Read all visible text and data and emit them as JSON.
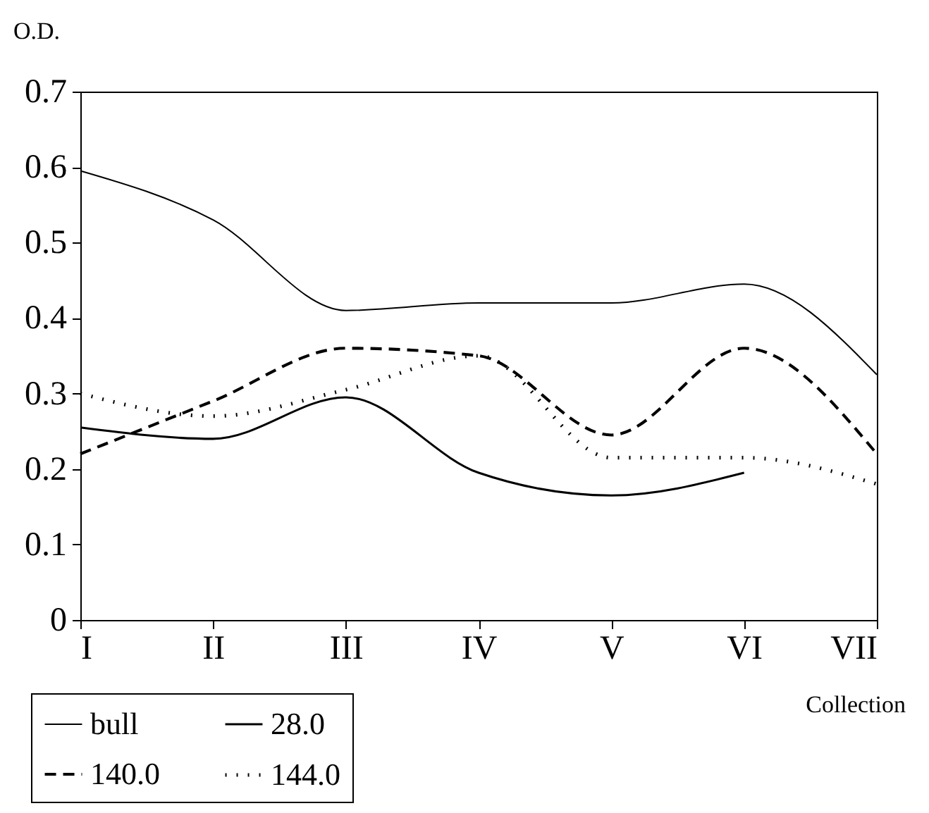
{
  "chart_data": {
    "type": "line",
    "xlabel": "Collection",
    "ylabel": "O.D.",
    "categories": [
      "I",
      "II",
      "III",
      "IV",
      "V",
      "VI",
      "VII"
    ],
    "series": [
      {
        "name": "bull",
        "color": "#000000",
        "line_style": "solid",
        "values": [
          0.595,
          0.53,
          0.41,
          0.42,
          0.42,
          0.445,
          0.325
        ]
      },
      {
        "name": "28.0",
        "color": "#000000",
        "line_style": "solid",
        "values": [
          0.255,
          0.24,
          0.295,
          0.195,
          0.165,
          0.195,
          null
        ]
      },
      {
        "name": "140.0",
        "color": "#000000",
        "line_style": "dashed",
        "values": [
          0.22,
          0.29,
          0.36,
          0.35,
          0.245,
          0.36,
          0.22
        ]
      },
      {
        "name": "144.0",
        "color": "#000000",
        "line_style": "dotted",
        "values": [
          0.3,
          0.27,
          0.305,
          0.35,
          0.215,
          0.215,
          0.18
        ]
      }
    ],
    "ylim": [
      0,
      0.7
    ],
    "yticks": [
      0,
      0.1,
      0.2,
      0.3,
      0.4,
      0.5,
      0.6,
      0.7
    ],
    "grid": false,
    "legend": "bottom left",
    "marker": "none"
  }
}
